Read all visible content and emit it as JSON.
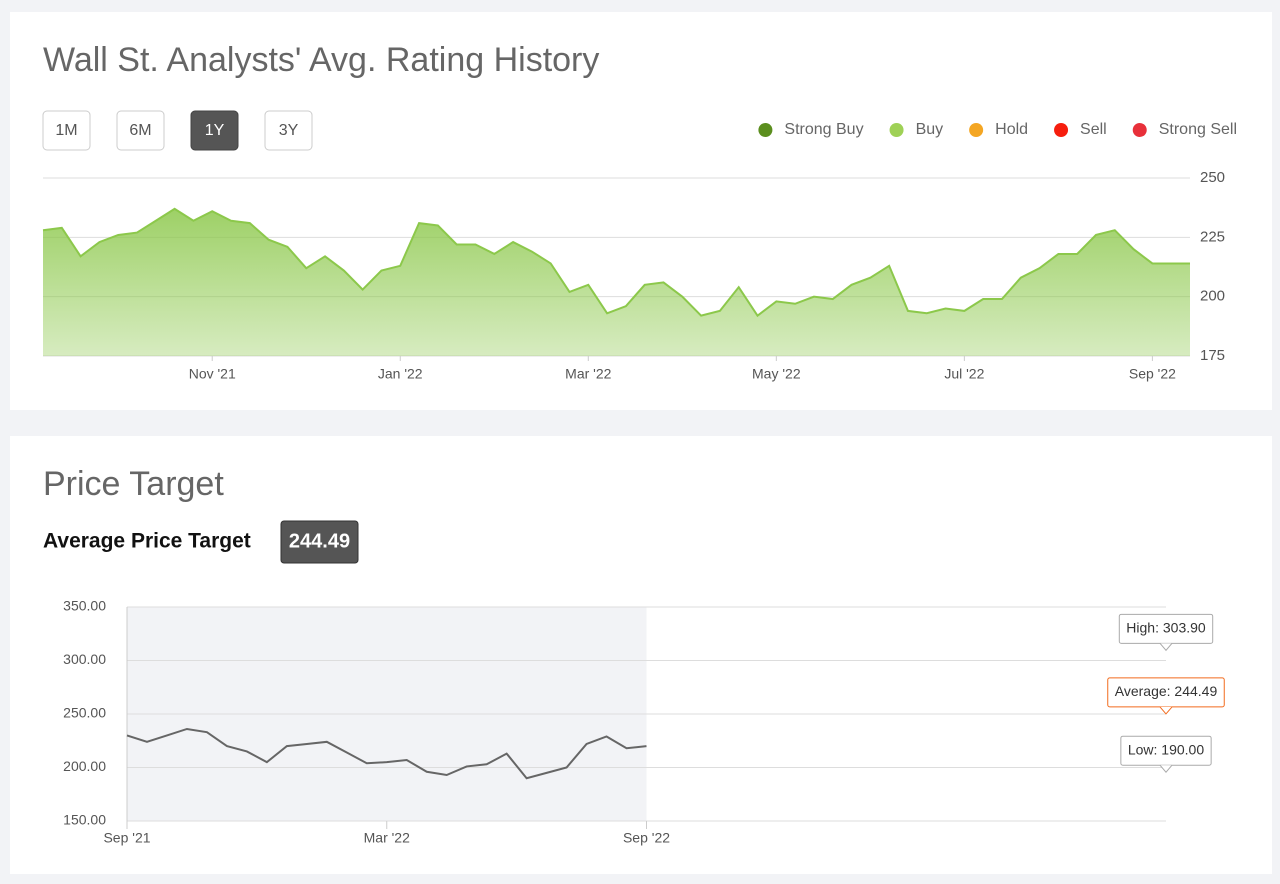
{
  "chart_data": [
    {
      "type": "area",
      "title": "Wall St. Analysts' Avg. Rating History",
      "range_buttons": [
        "1M",
        "6M",
        "1Y",
        "3Y"
      ],
      "active_range": "1Y",
      "legend": [
        {
          "name": "Strong Buy",
          "color": "#5b8e1e"
        },
        {
          "name": "Buy",
          "color": "#9fd156"
        },
        {
          "name": "Hold",
          "color": "#f4a623"
        },
        {
          "name": "Sell",
          "color": "#f61e0e"
        },
        {
          "name": "Strong Sell",
          "color": "#e8303a"
        }
      ],
      "categories": [
        null,
        null,
        null,
        null,
        null,
        null,
        null,
        null,
        null,
        "Nov '21",
        null,
        null,
        null,
        null,
        null,
        null,
        null,
        null,
        null,
        "Jan '22",
        null,
        null,
        null,
        null,
        null,
        null,
        null,
        null,
        null,
        "Mar '22",
        null,
        null,
        null,
        null,
        null,
        null,
        null,
        null,
        null,
        "May '22",
        null,
        null,
        null,
        null,
        null,
        null,
        null,
        null,
        null,
        "Jul '22",
        null,
        null,
        null,
        null,
        null,
        null,
        null,
        null,
        null,
        "Sep '22",
        null,
        null
      ],
      "values": [
        228,
        229,
        217,
        223,
        226,
        227,
        232,
        237,
        232,
        236,
        232,
        231,
        224,
        221,
        212,
        217,
        211,
        203,
        211,
        213,
        231,
        230,
        222,
        222,
        218,
        223,
        219,
        214,
        202,
        205,
        193,
        196,
        205,
        206,
        200,
        192,
        194,
        204,
        192,
        198,
        197,
        200,
        199,
        205,
        208,
        213,
        194,
        193,
        195,
        194,
        199,
        199,
        208,
        212,
        218,
        218,
        226,
        228,
        220,
        214,
        214,
        214
      ],
      "color": "#8cc84b",
      "ylim": [
        175,
        250
      ],
      "yticks": [
        175,
        200,
        225,
        250
      ],
      "grid": true
    },
    {
      "type": "line",
      "title": "Price Target",
      "summary": {
        "label": "Average Price Target",
        "value": 244.49
      },
      "categories": [
        "Sep '21",
        null,
        null,
        null,
        null,
        null,
        null,
        null,
        null,
        null,
        null,
        null,
        null,
        "Mar '22",
        null,
        null,
        null,
        null,
        null,
        null,
        null,
        null,
        null,
        null,
        null,
        null,
        "Sep '22",
        null,
        null,
        null,
        null,
        null,
        null,
        null,
        null,
        null,
        null,
        null,
        null,
        null,
        null,
        null,
        null,
        null,
        null,
        null,
        null,
        null,
        null,
        null,
        null,
        null,
        null
      ],
      "series": [
        {
          "color": "#666666",
          "values": [
            230,
            224,
            230,
            236,
            233,
            220,
            215,
            205,
            220,
            222,
            224,
            214,
            204,
            205,
            207,
            196,
            193,
            201,
            203,
            213,
            190,
            195,
            200,
            222,
            229,
            218,
            220,
            null,
            null,
            null,
            null,
            null,
            null,
            null,
            null,
            null,
            null,
            null,
            null,
            null,
            null,
            null,
            null,
            null,
            null,
            null,
            null,
            null,
            null,
            null,
            null,
            null,
            null
          ]
        },
        {
          "color": "#aaaaaa",
          "dashed": true,
          "values": [
            null,
            null,
            null,
            null,
            null,
            null,
            null,
            null,
            null,
            null,
            null,
            null,
            null,
            null,
            null,
            null,
            null,
            null,
            null,
            null,
            null,
            null,
            null,
            null,
            null,
            null,
            220,
            null,
            null,
            null,
            null,
            null,
            null,
            null,
            null,
            null,
            null,
            null,
            null,
            null,
            null,
            null,
            null,
            null,
            null,
            null,
            null,
            null,
            null,
            null,
            null,
            null,
            303.9
          ],
          "value_labels": [
            null,
            null,
            null,
            null,
            null,
            null,
            null,
            null,
            null,
            null,
            null,
            null,
            null,
            null,
            null,
            null,
            null,
            null,
            null,
            null,
            null,
            null,
            null,
            null,
            null,
            null,
            null,
            null,
            null,
            null,
            null,
            null,
            null,
            null,
            null,
            null,
            null,
            null,
            null,
            null,
            null,
            null,
            null,
            null,
            null,
            null,
            null,
            null,
            null,
            null,
            null,
            null,
            "High: 303.90"
          ]
        },
        {
          "color": "#f26b1d",
          "dashed": true,
          "values": [
            null,
            null,
            null,
            null,
            null,
            null,
            null,
            null,
            null,
            null,
            null,
            null,
            null,
            null,
            null,
            null,
            null,
            null,
            null,
            null,
            null,
            null,
            null,
            null,
            null,
            null,
            220,
            null,
            null,
            null,
            null,
            null,
            null,
            null,
            null,
            null,
            null,
            null,
            null,
            null,
            null,
            null,
            null,
            null,
            null,
            null,
            null,
            null,
            null,
            null,
            null,
            null,
            244.49
          ],
          "value_labels": [
            null,
            null,
            null,
            null,
            null,
            null,
            null,
            null,
            null,
            null,
            null,
            null,
            null,
            null,
            null,
            null,
            null,
            null,
            null,
            null,
            null,
            null,
            null,
            null,
            null,
            null,
            null,
            null,
            null,
            null,
            null,
            null,
            null,
            null,
            null,
            null,
            null,
            null,
            null,
            null,
            null,
            null,
            null,
            null,
            null,
            null,
            null,
            null,
            null,
            null,
            null,
            null,
            "Average: 244.49"
          ]
        },
        {
          "color": "#aaaaaa",
          "dashed": true,
          "values": [
            null,
            null,
            null,
            null,
            null,
            null,
            null,
            null,
            null,
            null,
            null,
            null,
            null,
            null,
            null,
            null,
            null,
            null,
            null,
            null,
            null,
            null,
            null,
            null,
            null,
            null,
            220,
            null,
            null,
            null,
            null,
            null,
            null,
            null,
            null,
            null,
            null,
            null,
            null,
            null,
            null,
            null,
            null,
            null,
            null,
            null,
            null,
            null,
            null,
            null,
            null,
            null,
            190
          ],
          "value_labels": [
            null,
            null,
            null,
            null,
            null,
            null,
            null,
            null,
            null,
            null,
            null,
            null,
            null,
            null,
            null,
            null,
            null,
            null,
            null,
            null,
            null,
            null,
            null,
            null,
            null,
            null,
            null,
            null,
            null,
            null,
            null,
            null,
            null,
            null,
            null,
            null,
            null,
            null,
            null,
            null,
            null,
            null,
            null,
            null,
            null,
            null,
            null,
            null,
            null,
            null,
            null,
            null,
            "Low: 190.00"
          ]
        }
      ],
      "ylim": [
        150,
        350
      ],
      "yticks": [
        {
          "value": 150,
          "label": "150.00"
        },
        {
          "value": 200,
          "label": "200.00"
        },
        {
          "value": 250,
          "label": "250.00"
        },
        {
          "value": 300,
          "label": "300.00"
        },
        {
          "value": 350,
          "label": "350.00"
        }
      ],
      "grid": true
    }
  ]
}
